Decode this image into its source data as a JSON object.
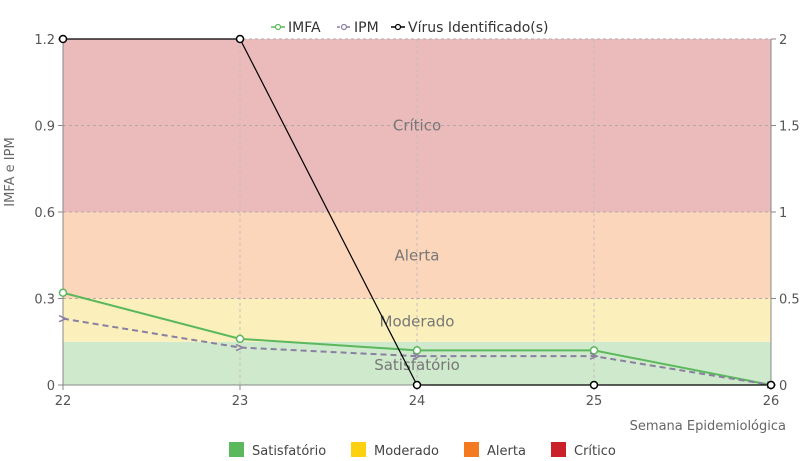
{
  "chart_data": {
    "type": "line",
    "x": [
      22,
      23,
      24,
      25,
      26
    ],
    "xlabel": "Semana Epidemiológica",
    "ylabel": "IMFA e IPM",
    "ylim": [
      0,
      1.2
    ],
    "y2lim": [
      0,
      2
    ],
    "y_ticks": [
      "0",
      "0.3",
      "0.6",
      "0.9",
      "1.2"
    ],
    "y2_ticks": [
      "0",
      "0.5",
      "1",
      "1.5",
      "2"
    ],
    "x_ticks": [
      "22",
      "23",
      "24",
      "25",
      "26"
    ],
    "grid": true,
    "legend_top": [
      "IMFA",
      "IPM",
      "Vírus Identificado(s)"
    ],
    "series": [
      {
        "name": "IMFA",
        "axis": "left",
        "style": "solid",
        "color": "#5cb85c",
        "values": [
          0.32,
          0.16,
          0.12,
          0.12,
          0
        ]
      },
      {
        "name": "IPM",
        "axis": "left",
        "style": "dashed",
        "color": "#8a7fa0",
        "values": [
          0.23,
          0.13,
          0.1,
          0.1,
          0
        ]
      },
      {
        "name": "Vírus Identificado(s)",
        "axis": "right",
        "style": "solid",
        "color": "#000000",
        "values": [
          2,
          2,
          0,
          0,
          0
        ]
      }
    ],
    "bands": [
      {
        "name": "Satisfatório",
        "from": 0,
        "to": 0.15,
        "fill": "#cfe9cc",
        "legend_color": "#5cb85c"
      },
      {
        "name": "Moderado",
        "from": 0.15,
        "to": 0.3,
        "fill": "#fbf0bb",
        "legend_color": "#fdd10f"
      },
      {
        "name": "Alerta",
        "from": 0.3,
        "to": 0.6,
        "fill": "#fbd6bb",
        "legend_color": "#f47a20"
      },
      {
        "name": "Crítico",
        "from": 0.6,
        "to": 1.2,
        "fill": "#ebbaba",
        "legend_color": "#c9202a"
      }
    ],
    "band_labels": [
      {
        "text": "Crítico",
        "y": 0.9
      },
      {
        "text": "Alerta",
        "y": 0.45
      },
      {
        "text": "Moderado",
        "y": 0.22
      },
      {
        "text": "Satisfatório",
        "y": 0.07
      }
    ],
    "legend_bottom": [
      "Satisfatório",
      "Moderado",
      "Alerta",
      "Crítico"
    ]
  }
}
